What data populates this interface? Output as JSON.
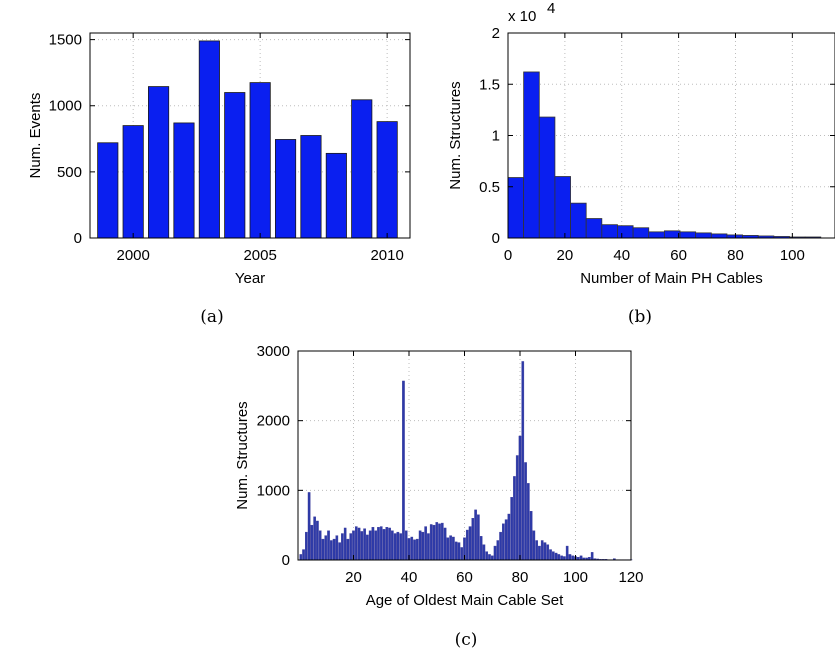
{
  "chart_data": [
    {
      "type": "bar",
      "caption": "(a)",
      "xlabel": "Year",
      "ylabel": "Num. Events",
      "x": [
        1999,
        2000,
        2001,
        2002,
        2003,
        2004,
        2005,
        2006,
        2007,
        2008,
        2009,
        2010
      ],
      "values": [
        720,
        850,
        1145,
        870,
        1490,
        1100,
        1175,
        745,
        775,
        640,
        1045,
        880
      ],
      "xlim": [
        1998.3,
        2010.9
      ],
      "ylim": [
        0,
        1550
      ],
      "xticks": [
        2000,
        2005,
        2010
      ],
      "yticks": [
        0,
        500,
        1000,
        1500
      ],
      "grid": true,
      "color": "#0a1ff0"
    },
    {
      "type": "bar",
      "caption": "(b)",
      "xlabel": "Number of Main PH Cables",
      "ylabel": "Num. Structures",
      "y_exponent_label": "x 10",
      "y_exponent": "4",
      "bin_width": 5.5,
      "bin_start": 0,
      "values": [
        0.59,
        1.62,
        1.18,
        0.6,
        0.34,
        0.19,
        0.13,
        0.12,
        0.1,
        0.06,
        0.07,
        0.06,
        0.05,
        0.04,
        0.03,
        0.025,
        0.02,
        0.015,
        0.01,
        0.01
      ],
      "xlim": [
        0,
        115
      ],
      "ylim": [
        0,
        2
      ],
      "xticks": [
        0,
        20,
        40,
        60,
        80,
        100
      ],
      "yticks": [
        0,
        0.5,
        1,
        1.5,
        2
      ],
      "ytick_labels": [
        "0",
        "0.5",
        "1",
        "1.5",
        "2"
      ],
      "grid": true,
      "color": "#0a1ff0"
    },
    {
      "type": "bar",
      "caption": "(c)",
      "xlabel": "Age of Oldest Main Cable Set",
      "ylabel": "Num. Structures",
      "x_start": 1,
      "values": [
        80,
        150,
        400,
        970,
        500,
        620,
        560,
        420,
        300,
        350,
        420,
        280,
        300,
        350,
        250,
        380,
        460,
        300,
        380,
        420,
        480,
        460,
        410,
        450,
        360,
        420,
        470,
        420,
        470,
        480,
        440,
        470,
        460,
        420,
        380,
        400,
        380,
        2570,
        420,
        310,
        330,
        290,
        300,
        420,
        400,
        480,
        380,
        510,
        500,
        540,
        520,
        530,
        460,
        320,
        350,
        330,
        260,
        250,
        180,
        320,
        430,
        480,
        600,
        720,
        650,
        340,
        220,
        120,
        80,
        60,
        200,
        280,
        400,
        520,
        580,
        660,
        900,
        1200,
        1500,
        1780,
        2850,
        1400,
        1100,
        700,
        420,
        280,
        200,
        280,
        250,
        220,
        150,
        120,
        100,
        80,
        60,
        50,
        200,
        80,
        60,
        50,
        40,
        60,
        30,
        30,
        40,
        110,
        20,
        15,
        10,
        10,
        10,
        5,
        5,
        20,
        5,
        5,
        5,
        5,
        5,
        5
      ],
      "xlim": [
        0,
        120
      ],
      "ylim": [
        0,
        3000
      ],
      "xticks": [
        20,
        40,
        60,
        80,
        100,
        120
      ],
      "yticks": [
        0,
        1000,
        2000,
        3000
      ],
      "grid": true,
      "color": "#2d3aa8"
    }
  ]
}
